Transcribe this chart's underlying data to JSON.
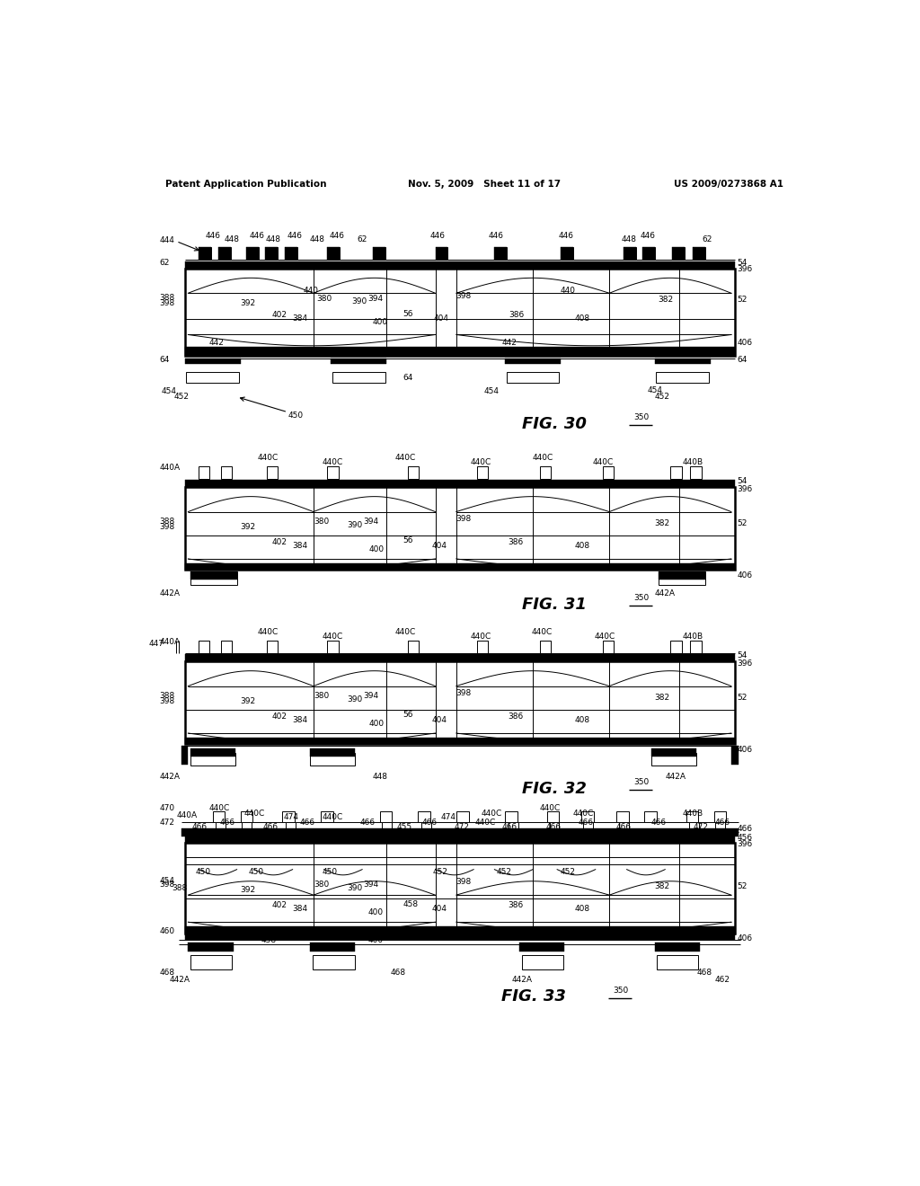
{
  "background_color": "#ffffff",
  "header_left": "Patent Application Publication",
  "header_center": "Nov. 5, 2009   Sheet 11 of 17",
  "header_right": "US 2009/0273868 A1"
}
